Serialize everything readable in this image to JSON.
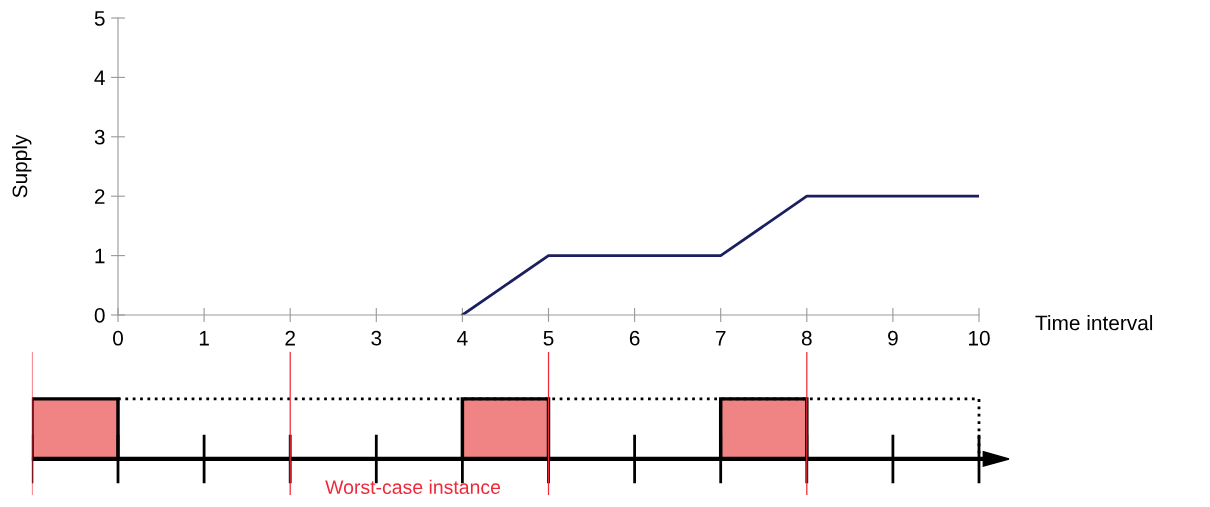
{
  "chart_data": {
    "type": "line",
    "ylabel": "Supply",
    "xlabel": "Time interval",
    "x": [
      4,
      5,
      7,
      8,
      10
    ],
    "series": [
      {
        "color": "#1b1f5f",
        "values": [
          0,
          1,
          1,
          2,
          2
        ]
      }
    ],
    "xlim": [
      0,
      10
    ],
    "xticks": [
      0,
      1,
      2,
      3,
      4,
      5,
      6,
      7,
      8,
      9,
      10
    ],
    "ylim": [
      0,
      5
    ],
    "yticks": [
      0,
      1,
      2,
      3,
      4,
      5
    ],
    "grid": false,
    "marker": "none",
    "line_style": "solid",
    "annotations": [
      "Worst-case instance"
    ]
  }
}
